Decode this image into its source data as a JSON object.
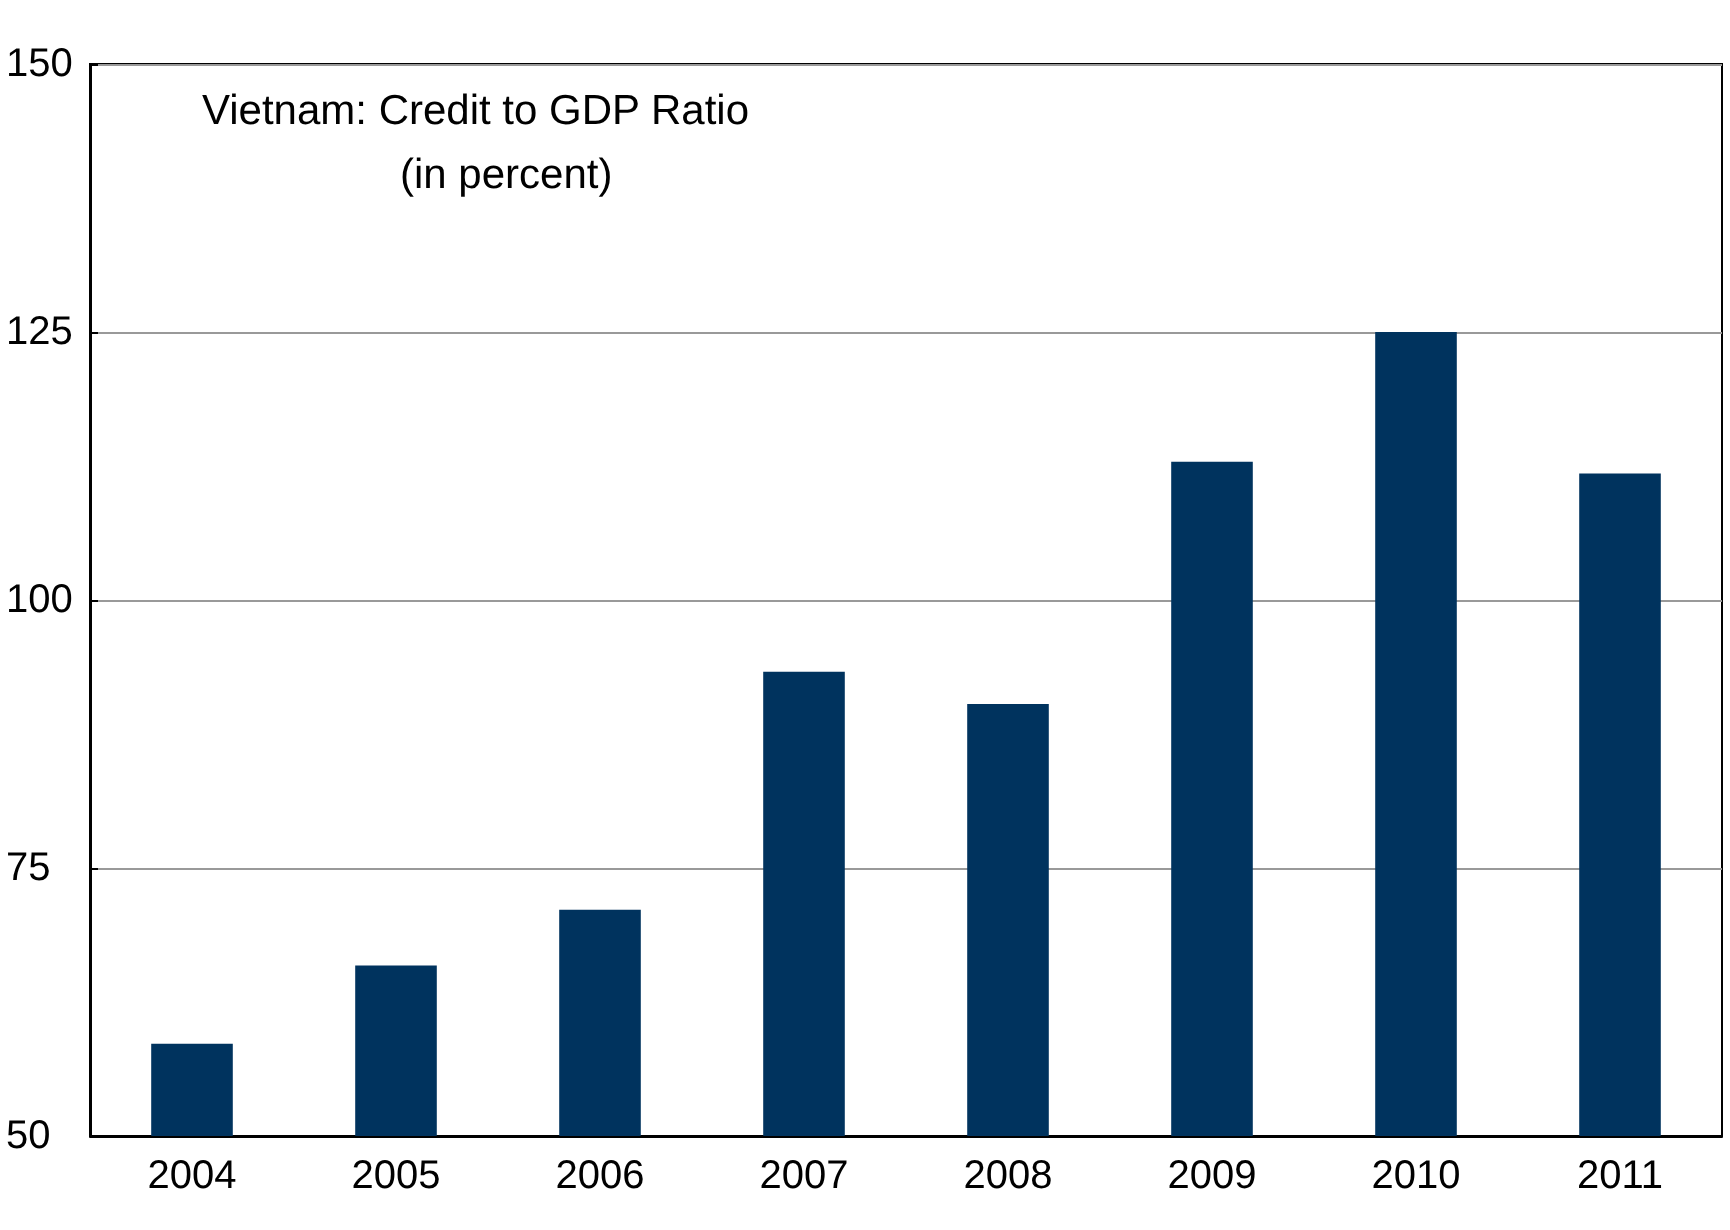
{
  "chart_data": {
    "type": "bar",
    "title": "Vietnam: Credit to GDP Ratio",
    "subtitle": "(in percent)",
    "categories": [
      "2004",
      "2005",
      "2006",
      "2007",
      "2008",
      "2009",
      "2010",
      "2011"
    ],
    "values": [
      58.6,
      65.9,
      71.1,
      93.3,
      90.3,
      112.9,
      125,
      111.8
    ],
    "color": "#00335e",
    "ylim": [
      50,
      150
    ],
    "yticks": [
      50,
      75,
      100,
      125,
      150
    ],
    "grid": "y"
  }
}
